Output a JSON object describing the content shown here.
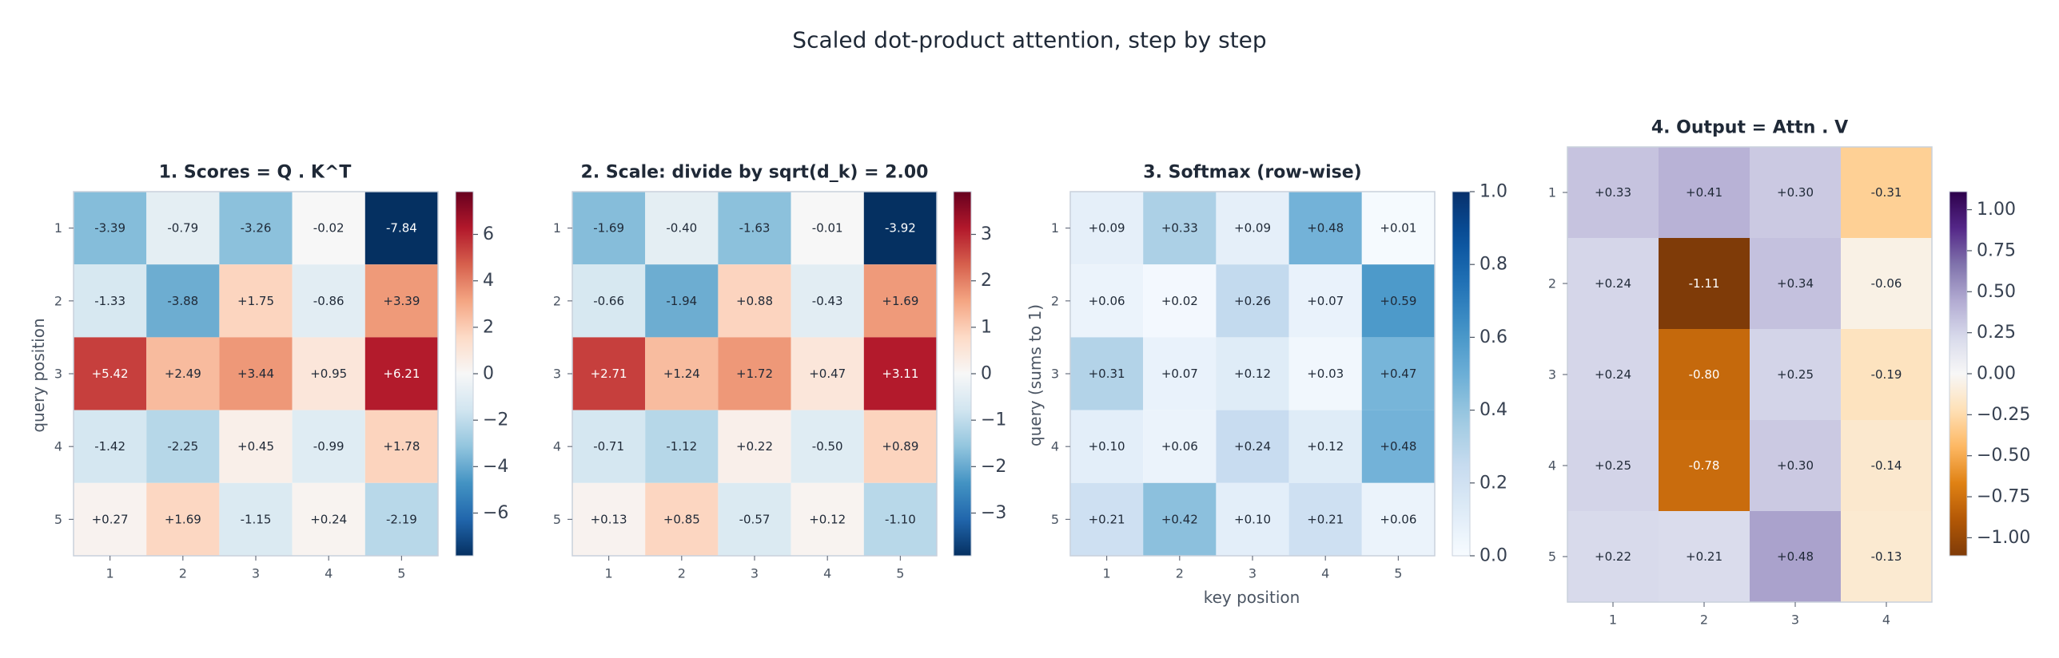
{
  "figure": {
    "title": "Scaled dot-product attention, step by step"
  },
  "chart_data": [
    {
      "type": "heatmap",
      "title": "1. Scores = Q . K^T",
      "xlabel": "",
      "ylabel": "query position",
      "x_ticks": [
        "1",
        "2",
        "3",
        "4",
        "5"
      ],
      "y_ticks": [
        "1",
        "2",
        "3",
        "4",
        "5"
      ],
      "colormap": "RdBu_r (blue-white-red)",
      "clim": [
        -7.84,
        7.84
      ],
      "colorbar_ticks": [
        "6",
        "4",
        "2",
        "0",
        "−2",
        "−4",
        "−6"
      ],
      "colorbar_tick_values": [
        6,
        4,
        2,
        0,
        -2,
        -4,
        -6
      ],
      "cell_labels": [
        [
          "-3.39",
          "-0.79",
          "-3.26",
          "-0.02",
          "-7.84"
        ],
        [
          "-1.33",
          "-3.88",
          "+1.75",
          "-0.86",
          "+3.39"
        ],
        [
          "+5.42",
          "+2.49",
          "+3.44",
          "+0.95",
          "+6.21"
        ],
        [
          "-1.42",
          "-2.25",
          "+0.45",
          "-0.99",
          "+1.78"
        ],
        [
          "+0.27",
          "+1.69",
          "-1.15",
          "+0.24",
          "-2.19"
        ]
      ],
      "values": [
        [
          -3.39,
          -0.79,
          -3.26,
          -0.02,
          -7.84
        ],
        [
          -1.33,
          -3.88,
          1.75,
          -0.86,
          3.39
        ],
        [
          5.42,
          2.49,
          3.44,
          0.95,
          6.21
        ],
        [
          -1.42,
          -2.25,
          0.45,
          -0.99,
          1.78
        ],
        [
          0.27,
          1.69,
          -1.15,
          0.24,
          -2.19
        ]
      ]
    },
    {
      "type": "heatmap",
      "title": "2. Scale: divide by sqrt(d_k) = 2.00",
      "xlabel": "",
      "ylabel": "",
      "x_ticks": [
        "1",
        "2",
        "3",
        "4",
        "5"
      ],
      "y_ticks": [
        "1",
        "2",
        "3",
        "4",
        "5"
      ],
      "colormap": "RdBu_r (blue-white-red)",
      "clim": [
        -3.92,
        3.92
      ],
      "colorbar_ticks": [
        "3",
        "2",
        "1",
        "0",
        "−1",
        "−2",
        "−3"
      ],
      "colorbar_tick_values": [
        3,
        2,
        1,
        0,
        -1,
        -2,
        -3
      ],
      "cell_labels": [
        [
          "-1.69",
          "-0.40",
          "-1.63",
          "-0.01",
          "-3.92"
        ],
        [
          "-0.66",
          "-1.94",
          "+0.88",
          "-0.43",
          "+1.69"
        ],
        [
          "+2.71",
          "+1.24",
          "+1.72",
          "+0.47",
          "+3.11"
        ],
        [
          "-0.71",
          "-1.12",
          "+0.22",
          "-0.50",
          "+0.89"
        ],
        [
          "+0.13",
          "+0.85",
          "-0.57",
          "+0.12",
          "-1.10"
        ]
      ],
      "values": [
        [
          -1.69,
          -0.4,
          -1.63,
          -0.01,
          -3.92
        ],
        [
          -0.66,
          -1.94,
          0.88,
          -0.43,
          1.69
        ],
        [
          2.71,
          1.24,
          1.72,
          0.47,
          3.11
        ],
        [
          -0.71,
          -1.12,
          0.22,
          -0.5,
          0.89
        ],
        [
          0.13,
          0.85,
          -0.57,
          0.12,
          -1.1
        ]
      ]
    },
    {
      "type": "heatmap",
      "title": "3. Softmax (row-wise)",
      "xlabel": "key position",
      "ylabel": "query (sums to 1)",
      "x_ticks": [
        "1",
        "2",
        "3",
        "4",
        "5"
      ],
      "y_ticks": [
        "1",
        "2",
        "3",
        "4",
        "5"
      ],
      "colormap": "Blues",
      "clim": [
        0,
        1
      ],
      "colorbar_ticks": [
        "1.0",
        "0.8",
        "0.6",
        "0.4",
        "0.2",
        "0.0"
      ],
      "colorbar_tick_values": [
        1.0,
        0.8,
        0.6,
        0.4,
        0.2,
        0.0
      ],
      "cell_labels": [
        [
          "+0.09",
          "+0.33",
          "+0.09",
          "+0.48",
          "+0.01"
        ],
        [
          "+0.06",
          "+0.02",
          "+0.26",
          "+0.07",
          "+0.59"
        ],
        [
          "+0.31",
          "+0.07",
          "+0.12",
          "+0.03",
          "+0.47"
        ],
        [
          "+0.10",
          "+0.06",
          "+0.24",
          "+0.12",
          "+0.48"
        ],
        [
          "+0.21",
          "+0.42",
          "+0.10",
          "+0.21",
          "+0.06"
        ]
      ],
      "values": [
        [
          0.09,
          0.33,
          0.09,
          0.48,
          0.01
        ],
        [
          0.06,
          0.02,
          0.26,
          0.07,
          0.59
        ],
        [
          0.31,
          0.07,
          0.12,
          0.03,
          0.47
        ],
        [
          0.1,
          0.06,
          0.24,
          0.12,
          0.48
        ],
        [
          0.21,
          0.42,
          0.1,
          0.21,
          0.06
        ]
      ]
    },
    {
      "type": "heatmap",
      "title": "4. Output = Attn . V",
      "xlabel": "",
      "ylabel": "",
      "x_ticks": [
        "1",
        "2",
        "3",
        "4"
      ],
      "y_ticks": [
        "1",
        "2",
        "3",
        "4",
        "5"
      ],
      "colormap": "PuOr (orange-white-purple)",
      "clim": [
        -1.11,
        1.11
      ],
      "colorbar_ticks": [
        "1.00",
        "0.75",
        "0.50",
        "0.25",
        "0.00",
        "−0.25",
        "−0.50",
        "−0.75",
        "−1.00"
      ],
      "colorbar_tick_values": [
        1.0,
        0.75,
        0.5,
        0.25,
        0.0,
        -0.25,
        -0.5,
        -0.75,
        -1.0
      ],
      "cell_labels": [
        [
          "+0.33",
          "+0.41",
          "+0.30",
          "-0.31"
        ],
        [
          "+0.24",
          "-1.11",
          "+0.34",
          "-0.06"
        ],
        [
          "+0.24",
          "-0.80",
          "+0.25",
          "-0.19"
        ],
        [
          "+0.25",
          "-0.78",
          "+0.30",
          "-0.14"
        ],
        [
          "+0.22",
          "+0.21",
          "+0.48",
          "-0.13"
        ]
      ],
      "values": [
        [
          0.33,
          0.41,
          0.3,
          -0.31
        ],
        [
          0.24,
          -1.11,
          0.34,
          -0.06
        ],
        [
          0.24,
          -0.8,
          0.25,
          -0.19
        ],
        [
          0.25,
          -0.78,
          0.3,
          -0.14
        ],
        [
          0.22,
          0.21,
          0.48,
          -0.13
        ]
      ]
    }
  ]
}
